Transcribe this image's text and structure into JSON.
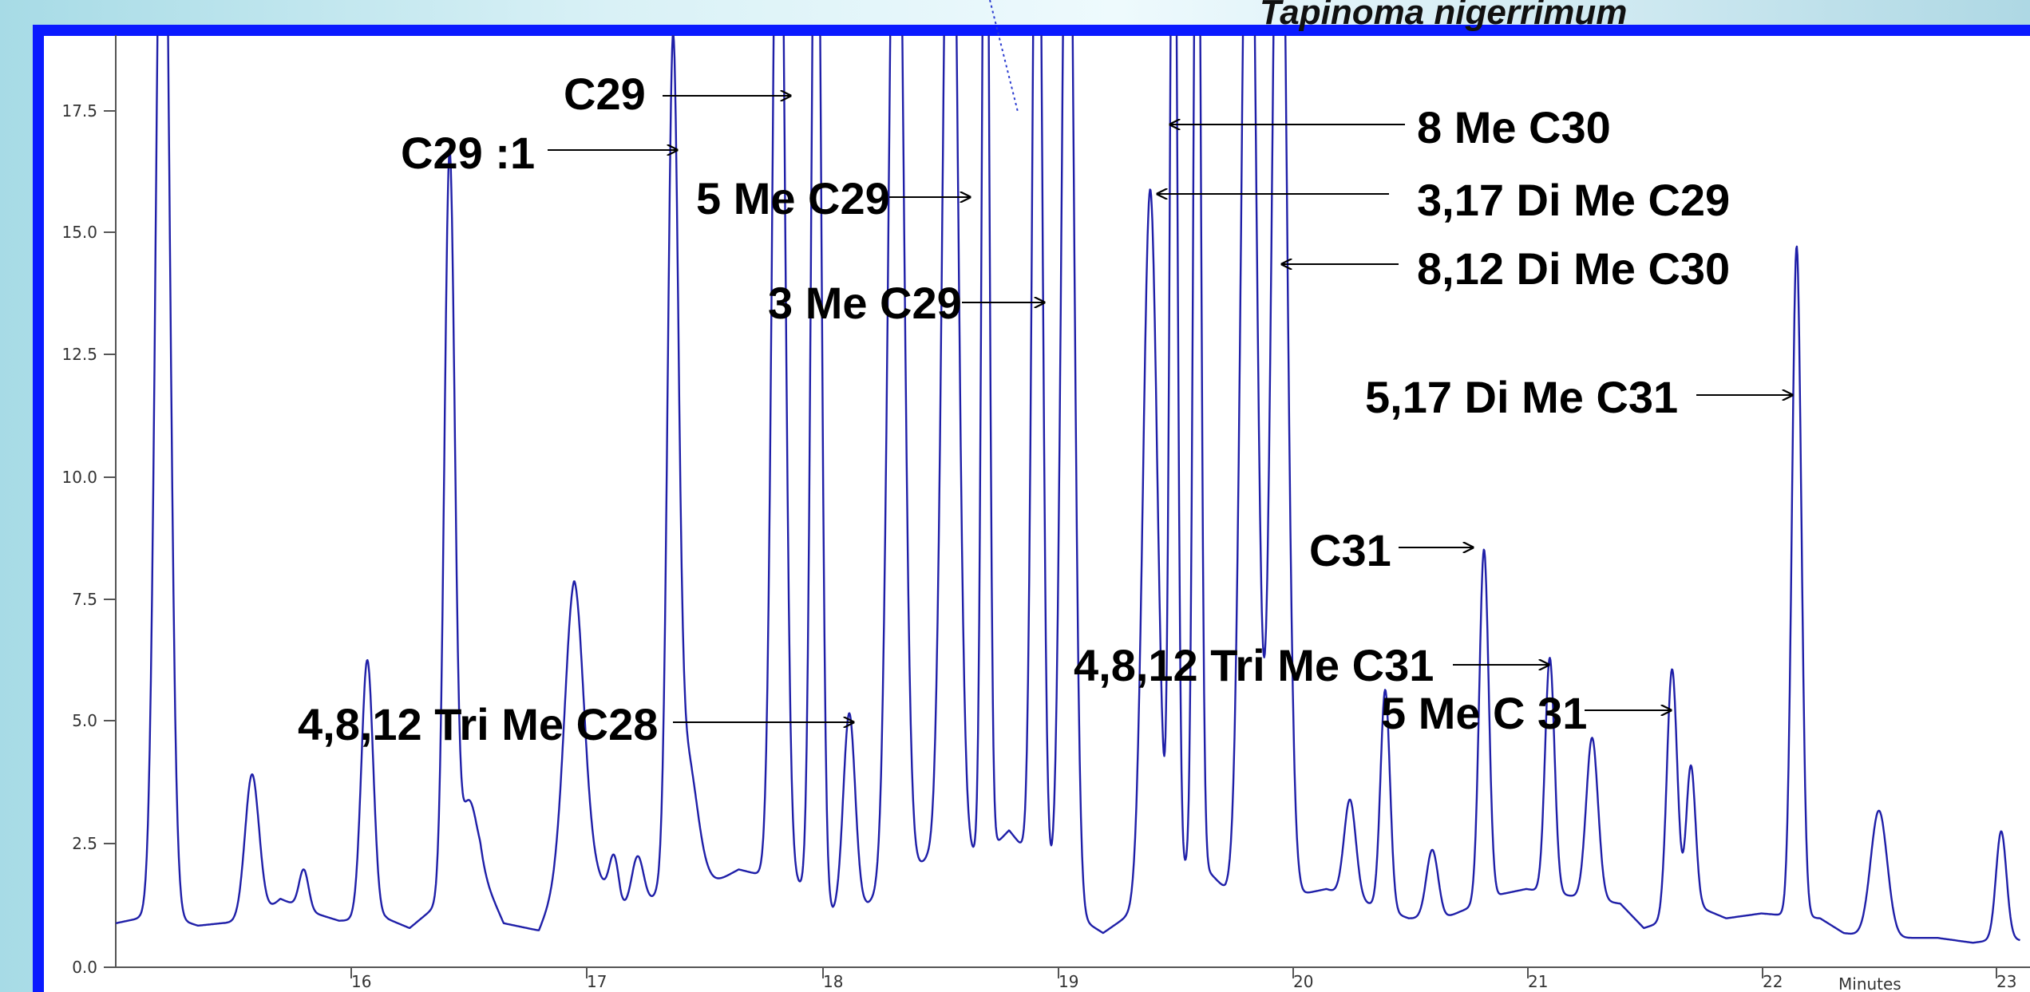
{
  "colors": {
    "trace": "#1f1fa8",
    "frame": "#0a1aff",
    "plot_background": "#ffffff",
    "annotation": "#000000"
  },
  "chart_data": {
    "type": "line",
    "title": "Tapinoma nigerrimum",
    "xlabel": "Minutes",
    "ylabel": "",
    "xlim": [
      15.0,
      23.1
    ],
    "ylim": [
      0.0,
      19.0
    ],
    "x_ticks": [
      "16",
      "17",
      "18",
      "19",
      "20",
      "21",
      "22",
      "23"
    ],
    "y_ticks": [
      "0.0",
      "2.5",
      "5.0",
      "7.5",
      "10.0",
      "12.5",
      "15.0",
      "17.5"
    ],
    "grid": false,
    "series": [
      {
        "baseline": [
          [
            15.0,
            0.9
          ],
          [
            15.1,
            1.0
          ],
          [
            15.25,
            1.0
          ],
          [
            15.35,
            0.85
          ],
          [
            15.45,
            0.9
          ],
          [
            15.6,
            0.95
          ],
          [
            15.7,
            1.4
          ],
          [
            15.85,
            1.1
          ],
          [
            15.95,
            0.95
          ],
          [
            16.15,
            1.0
          ],
          [
            16.25,
            0.8
          ],
          [
            16.55,
            2.0
          ],
          [
            16.65,
            0.9
          ],
          [
            16.8,
            0.75
          ],
          [
            16.95,
            2.5
          ],
          [
            17.15,
            1.2
          ],
          [
            17.25,
            1.3
          ],
          [
            17.5,
            1.6
          ],
          [
            17.65,
            2.0
          ],
          [
            17.9,
            1.7
          ],
          [
            18.05,
            1.1
          ],
          [
            18.2,
            1.3
          ],
          [
            18.45,
            2.2
          ],
          [
            18.7,
            2.3
          ],
          [
            18.8,
            2.8
          ],
          [
            18.9,
            2.2
          ],
          [
            19.1,
            1.0
          ],
          [
            19.2,
            0.7
          ],
          [
            19.35,
            1.2
          ],
          [
            19.6,
            2.2
          ],
          [
            19.72,
            1.6
          ],
          [
            20.05,
            1.5
          ],
          [
            20.15,
            1.6
          ],
          [
            20.5,
            1.0
          ],
          [
            20.65,
            1.0
          ],
          [
            20.9,
            1.5
          ],
          [
            21.0,
            1.6
          ],
          [
            21.4,
            1.3
          ],
          [
            21.5,
            0.8
          ],
          [
            21.75,
            1.2
          ],
          [
            21.85,
            1.0
          ],
          [
            22.0,
            1.1
          ],
          [
            22.25,
            1.0
          ],
          [
            22.35,
            0.7
          ],
          [
            22.5,
            0.6
          ],
          [
            22.75,
            0.6
          ],
          [
            22.9,
            0.5
          ],
          [
            23.05,
            0.6
          ],
          [
            23.1,
            0.55
          ]
        ],
        "peaks": [
          [
            15.2,
            25.0,
            0.028
          ],
          [
            15.58,
            3.0,
            0.03
          ],
          [
            15.8,
            0.8,
            0.02
          ],
          [
            16.07,
            5.3,
            0.025
          ],
          [
            16.42,
            15.1,
            0.022
          ],
          [
            16.5,
            1.6,
            0.035
          ],
          [
            16.95,
            5.4,
            0.04
          ],
          [
            17.12,
            0.9,
            0.02
          ],
          [
            17.22,
            1.0,
            0.025
          ],
          [
            17.37,
            15.8,
            0.022
          ],
          [
            17.42,
            3.0,
            0.05
          ],
          [
            17.82,
            25.0,
            0.025
          ],
          [
            17.98,
            25.0,
            0.02
          ],
          [
            18.12,
            4.0,
            0.025
          ],
          [
            18.32,
            25.0,
            0.03
          ],
          [
            18.55,
            25.0,
            0.03
          ],
          [
            18.7,
            25.0,
            0.015
          ],
          [
            18.92,
            25.0,
            0.02
          ],
          [
            19.05,
            25.0,
            0.025
          ],
          [
            19.4,
            14.5,
            0.03
          ],
          [
            19.5,
            25.0,
            0.015
          ],
          [
            19.6,
            25.0,
            0.015
          ],
          [
            19.82,
            25.0,
            0.03
          ],
          [
            19.95,
            25.0,
            0.03
          ],
          [
            20.25,
            2.0,
            0.025
          ],
          [
            20.4,
            4.5,
            0.02
          ],
          [
            20.6,
            1.4,
            0.025
          ],
          [
            20.82,
            7.2,
            0.02
          ],
          [
            21.1,
            4.8,
            0.02
          ],
          [
            21.28,
            3.3,
            0.025
          ],
          [
            21.62,
            5.1,
            0.022
          ],
          [
            21.7,
            3.0,
            0.02
          ],
          [
            22.15,
            13.7,
            0.02
          ],
          [
            22.5,
            2.6,
            0.035
          ],
          [
            23.02,
            2.2,
            0.022
          ]
        ]
      }
    ],
    "annotations": [
      {
        "label": "C29",
        "x": 17.82,
        "y": 17.8
      },
      {
        "label": "C29 :1",
        "x": 17.35,
        "y": 16.8
      },
      {
        "label": "5 Me C29",
        "x": 18.6,
        "y": 15.8
      },
      {
        "label": "3 Me C29",
        "x": 18.92,
        "y": 13.8
      },
      {
        "label": "8 Me C30",
        "x": 19.5,
        "y": 17.0
      },
      {
        "label": "3,17 Di Me C29",
        "x": 19.42,
        "y": 15.9
      },
      {
        "label": "8,12 Di Me C30",
        "x": 19.95,
        "y": 14.9
      },
      {
        "label": "5,17 Di Me C31",
        "x": 22.15,
        "y": 11.6
      },
      {
        "label": "C31",
        "x": 20.82,
        "y": 8.5
      },
      {
        "label": "4,8,12 Tri Me C31",
        "x": 21.05,
        "y": 6.0
      },
      {
        "label": "5 Me C 31",
        "x": 21.62,
        "y": 5.2
      },
      {
        "label": "4,8,12 Tri Me C28",
        "x": 18.12,
        "y": 5.0
      }
    ]
  }
}
